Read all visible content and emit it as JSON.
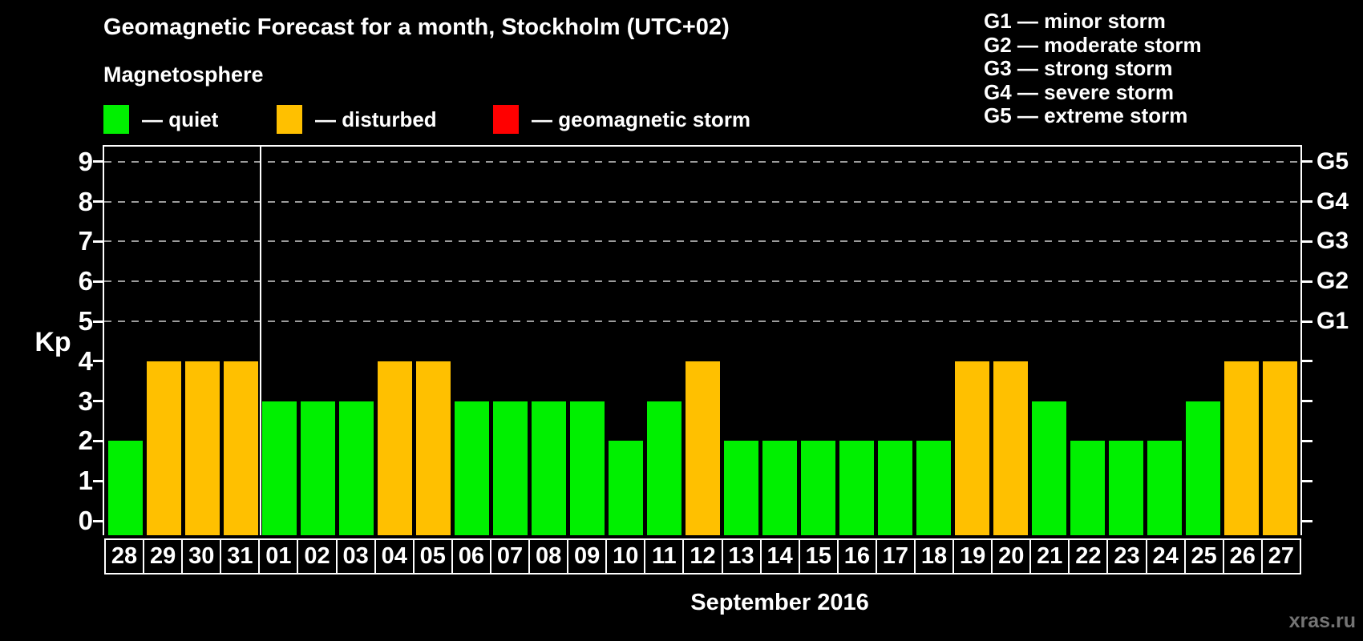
{
  "title": "Geomagnetic Forecast for a month, Stockholm (UTC+02)",
  "subtitle": "Magnetosphere",
  "watermark": "xras.ru",
  "legend": {
    "items": [
      {
        "label": "— quiet",
        "state": "quiet",
        "color": "#00f000"
      },
      {
        "label": "— disturbed",
        "state": "disturbed",
        "color": "#ffc000"
      },
      {
        "label": "— geomagnetic storm",
        "state": "storm",
        "color": "#ff0000"
      }
    ]
  },
  "storm_scale_legend": [
    "G1 — minor storm",
    "G2 — moderate storm",
    "G3 — strong storm",
    "G4 — severe storm",
    "G5 — extreme storm"
  ],
  "chart_data": {
    "type": "bar",
    "title": "Geomagnetic Forecast for a month, Stockholm (UTC+02)",
    "xlabel": "September 2016",
    "ylabel": "Kp",
    "ylim": [
      0,
      9
    ],
    "y_ticks": [
      0,
      1,
      2,
      3,
      4,
      5,
      6,
      7,
      8,
      9
    ],
    "grid": {
      "horizontal_dashed_at_kp": [
        5,
        6,
        7,
        8,
        9
      ]
    },
    "legend_position": "top",
    "categories": [
      "28",
      "29",
      "30",
      "31",
      "01",
      "02",
      "03",
      "04",
      "05",
      "06",
      "07",
      "08",
      "09",
      "10",
      "11",
      "12",
      "13",
      "14",
      "15",
      "16",
      "17",
      "18",
      "19",
      "20",
      "21",
      "22",
      "23",
      "24",
      "25",
      "26",
      "27"
    ],
    "values": [
      2,
      4,
      4,
      4,
      3,
      3,
      3,
      4,
      4,
      3,
      3,
      3,
      3,
      2,
      3,
      4,
      2,
      2,
      2,
      2,
      2,
      2,
      4,
      4,
      3,
      2,
      2,
      2,
      3,
      4,
      4
    ],
    "states": [
      "quiet",
      "disturbed",
      "disturbed",
      "disturbed",
      "quiet",
      "quiet",
      "quiet",
      "disturbed",
      "disturbed",
      "quiet",
      "quiet",
      "quiet",
      "quiet",
      "quiet",
      "quiet",
      "disturbed",
      "quiet",
      "quiet",
      "quiet",
      "quiet",
      "quiet",
      "quiet",
      "disturbed",
      "disturbed",
      "quiet",
      "quiet",
      "quiet",
      "quiet",
      "quiet",
      "disturbed",
      "disturbed"
    ],
    "state_colors": {
      "quiet": "#00f000",
      "disturbed": "#ffc000",
      "storm": "#ff0000"
    },
    "month_separator_after_category": "31",
    "right_axis_labels": [
      {
        "label": "G1",
        "kp": 5
      },
      {
        "label": "G2",
        "kp": 6
      },
      {
        "label": "G3",
        "kp": 7
      },
      {
        "label": "G4",
        "kp": 8
      },
      {
        "label": "G5",
        "kp": 9
      }
    ]
  }
}
